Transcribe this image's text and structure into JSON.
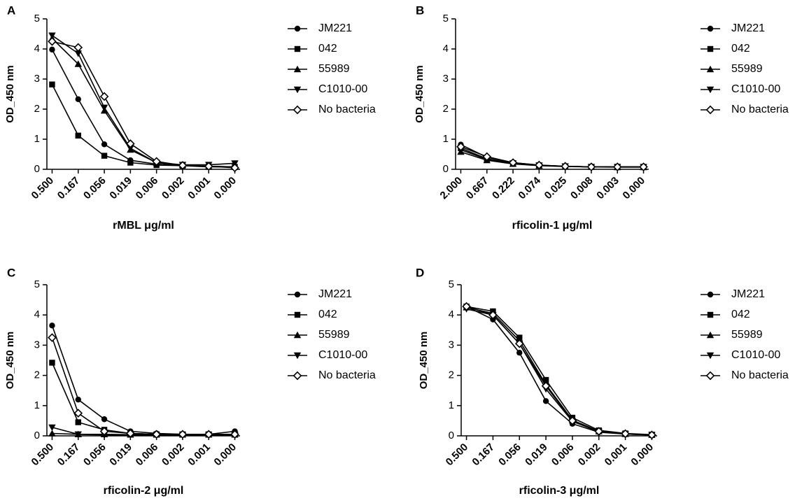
{
  "figure": {
    "series_names": [
      "JM221",
      "042",
      "55989",
      "C1010-00",
      "No bacteria"
    ],
    "series_markers": [
      "circle",
      "square",
      "triangle-up",
      "triangle-down",
      "diamond-open"
    ],
    "line_color": "#000000",
    "background": "#ffffff"
  },
  "chart_data": [
    {
      "panel": "A",
      "type": "line",
      "title": "",
      "xlabel": "rMBL μg/ml",
      "ylabel": "OD_450 nm",
      "categories": [
        "0.500",
        "0.167",
        "0.056",
        "0.019",
        "0.006",
        "0.002",
        "0.001",
        "0.000"
      ],
      "ylim": [
        0,
        5
      ],
      "yticks": [
        "0",
        "1",
        "2",
        "3",
        "4",
        "5"
      ],
      "legend": "right",
      "series": [
        {
          "name": "JM221",
          "values": [
            3.98,
            2.33,
            0.83,
            0.3,
            0.17,
            0.12,
            0.1,
            0.08
          ]
        },
        {
          "name": "042",
          "values": [
            2.82,
            1.12,
            0.45,
            0.22,
            0.14,
            0.12,
            0.08,
            0.08
          ]
        },
        {
          "name": "55989",
          "values": [
            4.35,
            3.5,
            1.95,
            0.65,
            0.22,
            0.14,
            0.1,
            0.08
          ]
        },
        {
          "name": "C1010-00",
          "values": [
            4.45,
            3.85,
            2.05,
            0.7,
            0.22,
            0.15,
            0.15,
            0.2
          ]
        },
        {
          "name": "No bacteria",
          "values": [
            4.25,
            4.05,
            2.42,
            0.85,
            0.26,
            0.13,
            0.1,
            0.05
          ]
        }
      ]
    },
    {
      "panel": "B",
      "type": "line",
      "title": "",
      "xlabel": "rficolin-1 μg/ml",
      "ylabel": "OD_450 nm",
      "categories": [
        "2.000",
        "0.667",
        "0.222",
        "0.074",
        "0.025",
        "0.008",
        "0.003",
        "0.000"
      ],
      "ylim": [
        0,
        5
      ],
      "yticks": [
        "0",
        "1",
        "2",
        "3",
        "4",
        "5"
      ],
      "legend": "right",
      "series": [
        {
          "name": "JM221",
          "values": [
            0.82,
            0.4,
            0.22,
            0.14,
            0.1,
            0.08,
            0.08,
            0.08
          ]
        },
        {
          "name": "042",
          "values": [
            0.7,
            0.35,
            0.2,
            0.13,
            0.1,
            0.08,
            0.08,
            0.08
          ]
        },
        {
          "name": "55989",
          "values": [
            0.58,
            0.3,
            0.18,
            0.12,
            0.09,
            0.08,
            0.07,
            0.07
          ]
        },
        {
          "name": "C1010-00",
          "values": [
            0.65,
            0.33,
            0.2,
            0.13,
            0.1,
            0.08,
            0.08,
            0.08
          ]
        },
        {
          "name": "No bacteria",
          "values": [
            0.75,
            0.42,
            0.22,
            0.14,
            0.1,
            0.08,
            0.08,
            0.08
          ]
        }
      ]
    },
    {
      "panel": "C",
      "type": "line",
      "title": "",
      "xlabel": "rficolin-2 μg/ml",
      "ylabel": "OD_450 nm",
      "categories": [
        "0.500",
        "0.167",
        "0.056",
        "0.019",
        "0.006",
        "0.002",
        "0.001",
        "0.000"
      ],
      "ylim": [
        0,
        5
      ],
      "yticks": [
        "0",
        "1",
        "2",
        "3",
        "4",
        "5"
      ],
      "legend": "right",
      "series": [
        {
          "name": "JM221",
          "values": [
            3.65,
            1.2,
            0.55,
            0.15,
            0.08,
            0.05,
            0.05,
            0.15
          ]
        },
        {
          "name": "042",
          "values": [
            2.42,
            0.45,
            0.2,
            0.08,
            0.05,
            0.05,
            0.05,
            0.05
          ]
        },
        {
          "name": "55989",
          "values": [
            0.08,
            0.05,
            0.05,
            0.04,
            0.04,
            0.04,
            0.04,
            0.04
          ]
        },
        {
          "name": "C1010-00",
          "values": [
            0.28,
            0.05,
            0.03,
            0.03,
            0.03,
            0.03,
            0.03,
            0.03
          ]
        },
        {
          "name": "No bacteria",
          "values": [
            3.25,
            0.75,
            0.15,
            0.08,
            0.05,
            0.05,
            0.05,
            0.05
          ]
        }
      ]
    },
    {
      "panel": "D",
      "type": "line",
      "title": "",
      "xlabel": "rficolin-3 μg/ml",
      "ylabel": "OD_450 nm",
      "categories": [
        "0.500",
        "0.167",
        "0.056",
        "0.019",
        "0.006",
        "0.002",
        "0.001",
        "0.000"
      ],
      "ylim": [
        0,
        5
      ],
      "yticks": [
        "0",
        "1",
        "2",
        "3",
        "4",
        "5"
      ],
      "legend": "right",
      "series": [
        {
          "name": "JM221",
          "values": [
            4.28,
            3.85,
            2.75,
            1.15,
            0.4,
            0.12,
            0.06,
            0.03
          ]
        },
        {
          "name": "042",
          "values": [
            4.28,
            4.12,
            3.25,
            1.85,
            0.6,
            0.18,
            0.08,
            0.04
          ]
        },
        {
          "name": "55989",
          "values": [
            4.25,
            4.05,
            3.15,
            1.7,
            0.52,
            0.15,
            0.06,
            0.03
          ]
        },
        {
          "name": "C1010-00",
          "values": [
            4.2,
            4.0,
            3.05,
            1.55,
            0.48,
            0.14,
            0.06,
            0.03
          ]
        },
        {
          "name": "No bacteria",
          "values": [
            4.28,
            4.0,
            3.05,
            1.65,
            0.5,
            0.15,
            0.07,
            0.03
          ]
        }
      ]
    }
  ]
}
